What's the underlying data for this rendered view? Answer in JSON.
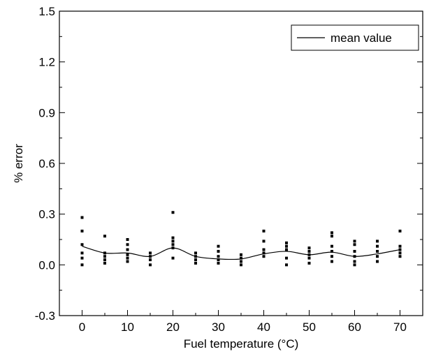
{
  "chart_data": {
    "type": "scatter",
    "title": "",
    "xlabel": "Fuel temperature (°C)",
    "ylabel": "% error",
    "xlim": [
      -5,
      75
    ],
    "ylim": [
      -0.3,
      1.5
    ],
    "x_ticks": [
      0,
      10,
      20,
      30,
      40,
      50,
      60,
      70
    ],
    "x_tick_labels": [
      "0",
      "10",
      "20",
      "30",
      "40",
      "50",
      "60",
      "70"
    ],
    "y_ticks": [
      -0.3,
      0.0,
      0.3,
      0.6,
      0.9,
      1.2,
      1.5
    ],
    "y_tick_labels": [
      "-0.3",
      "0.0",
      "0.3",
      "0.6",
      "0.9",
      "1.2",
      "1.5"
    ],
    "grid": false,
    "legend": {
      "position": "top-right",
      "entries": [
        "mean value"
      ]
    },
    "series": [
      {
        "kind": "scatter",
        "marker": "square",
        "points": [
          [
            0,
            0.28
          ],
          [
            0,
            0.2
          ],
          [
            0,
            0.12
          ],
          [
            0,
            0.07
          ],
          [
            0,
            0.04
          ],
          [
            0,
            0.0
          ],
          [
            5,
            0.17
          ],
          [
            5,
            0.07
          ],
          [
            5,
            0.05
          ],
          [
            5,
            0.03
          ],
          [
            5,
            0.01
          ],
          [
            10,
            0.15
          ],
          [
            10,
            0.12
          ],
          [
            10,
            0.09
          ],
          [
            10,
            0.06
          ],
          [
            10,
            0.04
          ],
          [
            10,
            0.02
          ],
          [
            15,
            0.07
          ],
          [
            15,
            0.05
          ],
          [
            15,
            0.03
          ],
          [
            15,
            0.0
          ],
          [
            20,
            0.31
          ],
          [
            20,
            0.16
          ],
          [
            20,
            0.14
          ],
          [
            20,
            0.12
          ],
          [
            20,
            0.1
          ],
          [
            20,
            0.04
          ],
          [
            25,
            0.07
          ],
          [
            25,
            0.05
          ],
          [
            25,
            0.03
          ],
          [
            25,
            0.01
          ],
          [
            30,
            0.11
          ],
          [
            30,
            0.08
          ],
          [
            30,
            0.05
          ],
          [
            30,
            0.03
          ],
          [
            30,
            0.01
          ],
          [
            35,
            0.06
          ],
          [
            35,
            0.04
          ],
          [
            35,
            0.02
          ],
          [
            35,
            0.0
          ],
          [
            40,
            0.2
          ],
          [
            40,
            0.14
          ],
          [
            40,
            0.09
          ],
          [
            40,
            0.07
          ],
          [
            40,
            0.05
          ],
          [
            45,
            0.13
          ],
          [
            45,
            0.11
          ],
          [
            45,
            0.09
          ],
          [
            45,
            0.04
          ],
          [
            45,
            0.0
          ],
          [
            50,
            0.1
          ],
          [
            50,
            0.08
          ],
          [
            50,
            0.06
          ],
          [
            50,
            0.04
          ],
          [
            50,
            0.01
          ],
          [
            55,
            0.19
          ],
          [
            55,
            0.17
          ],
          [
            55,
            0.11
          ],
          [
            55,
            0.08
          ],
          [
            55,
            0.05
          ],
          [
            55,
            0.02
          ],
          [
            60,
            0.14
          ],
          [
            60,
            0.12
          ],
          [
            60,
            0.08
          ],
          [
            60,
            0.05
          ],
          [
            60,
            0.02
          ],
          [
            60,
            0.0
          ],
          [
            65,
            0.14
          ],
          [
            65,
            0.11
          ],
          [
            65,
            0.08
          ],
          [
            65,
            0.05
          ],
          [
            65,
            0.02
          ],
          [
            70,
            0.2
          ],
          [
            70,
            0.11
          ],
          [
            70,
            0.09
          ],
          [
            70,
            0.07
          ],
          [
            70,
            0.05
          ]
        ]
      },
      {
        "name": "mean value",
        "kind": "line",
        "x": [
          0,
          5,
          10,
          15,
          20,
          25,
          30,
          35,
          40,
          45,
          50,
          55,
          60,
          65,
          70
        ],
        "values": [
          0.11,
          0.07,
          0.07,
          0.05,
          0.1,
          0.05,
          0.035,
          0.035,
          0.065,
          0.08,
          0.06,
          0.075,
          0.05,
          0.065,
          0.09
        ]
      }
    ]
  }
}
